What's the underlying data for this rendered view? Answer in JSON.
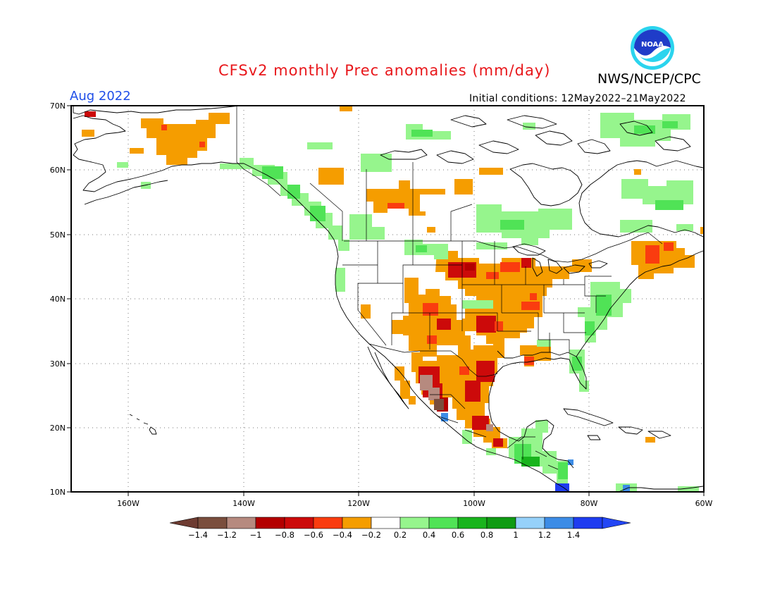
{
  "title": "CFSv2 monthly Prec anomalies (mm/day)",
  "agency": "NWS/NCEP/CPC",
  "logo_text": "NOAA",
  "valid_month": "Aug 2022",
  "initial_conditions": "Initial conditions: 12May2022–21May2022",
  "colors": {
    "title": "#e8171b",
    "month": "#1f4ee8"
  },
  "lat_ticks": [
    "70N",
    "60N",
    "50N",
    "40N",
    "30N",
    "20N",
    "10N"
  ],
  "lon_ticks": [
    "160W",
    "140W",
    "120W",
    "100W",
    "80W",
    "60W"
  ],
  "legend": {
    "labels": [
      "−1.4",
      "−1.2",
      "−1",
      "−0.8",
      "−0.6",
      "−0.4",
      "−0.2",
      "0.2",
      "0.4",
      "0.6",
      "0.8",
      "1",
      "1.2",
      "1.4"
    ],
    "colors": [
      "#7a4e3d",
      "#b68a7f",
      "#b30000",
      "#cc0a0a",
      "#fa3c0f",
      "#f59d00",
      "#ffffff",
      "#96f58d",
      "#50e356",
      "#19b41d",
      "#0f9b13",
      "#96d1fa",
      "#3c8ce6",
      "#1e3cf0"
    ],
    "left_arrow": "#6e3c32",
    "right_arrow": "#2346f5"
  }
}
